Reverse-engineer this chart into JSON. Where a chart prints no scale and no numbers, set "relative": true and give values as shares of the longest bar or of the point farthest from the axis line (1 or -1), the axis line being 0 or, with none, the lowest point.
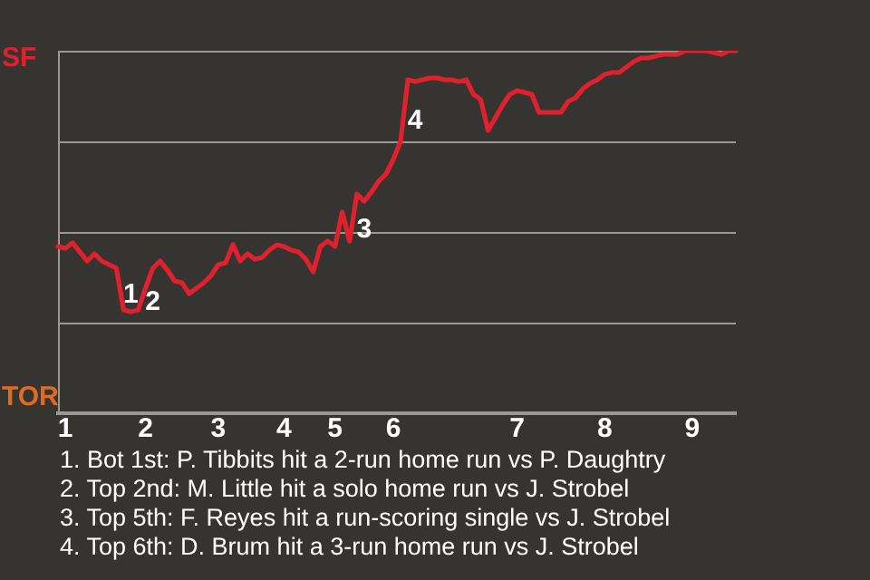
{
  "chart_data": {
    "type": "line",
    "relative": true,
    "marker": "none",
    "line_style": "solid",
    "ref_lines": [
      {
        "axis": "y",
        "value": 0.5,
        "color": "#9a9895"
      },
      {
        "axis": "y",
        "value": 0,
        "color": "#9a9895"
      },
      {
        "axis": "y",
        "value": -0.5,
        "color": "#9a9895"
      }
    ],
    "categories": [
      null,
      "1",
      null,
      null,
      null,
      null,
      null,
      null,
      null,
      null,
      null,
      null,
      "2",
      null,
      null,
      null,
      null,
      null,
      null,
      null,
      null,
      null,
      "3",
      null,
      null,
      null,
      null,
      null,
      null,
      null,
      null,
      "4",
      null,
      null,
      null,
      null,
      null,
      null,
      "5",
      null,
      null,
      null,
      null,
      null,
      null,
      null,
      "6",
      null,
      null,
      null,
      null,
      null,
      null,
      null,
      null,
      null,
      null,
      null,
      null,
      null,
      null,
      null,
      null,
      "7",
      null,
      null,
      null,
      null,
      null,
      null,
      null,
      null,
      null,
      null,
      null,
      "8",
      null,
      null,
      null,
      null,
      null,
      null,
      null,
      null,
      null,
      null,
      null,
      "9",
      null,
      null,
      null,
      null,
      null,
      null
    ],
    "color": "#e0202c",
    "values": [
      -0.08,
      -0.09,
      -0.06,
      -0.11,
      -0.16,
      -0.12,
      -0.16,
      -0.18,
      -0.2,
      -0.43,
      -0.44,
      -0.43,
      -0.31,
      -0.2,
      -0.16,
      -0.21,
      -0.27,
      -0.28,
      -0.34,
      -0.31,
      -0.28,
      -0.24,
      -0.18,
      -0.17,
      -0.07,
      -0.16,
      -0.12,
      -0.15,
      -0.14,
      -0.1,
      -0.07,
      -0.08,
      -0.1,
      -0.11,
      -0.15,
      -0.22,
      -0.08,
      -0.05,
      -0.08,
      0.11,
      -0.05,
      0.21,
      0.17,
      0.22,
      0.28,
      0.32,
      0.4,
      0.5,
      0.84,
      0.83,
      0.84,
      0.85,
      0.85,
      0.84,
      0.84,
      0.83,
      0.84,
      0.76,
      0.73,
      0.56,
      0.63,
      0.7,
      0.76,
      0.78,
      0.77,
      0.76,
      0.66,
      0.66,
      0.66,
      0.66,
      0.72,
      0.74,
      0.79,
      0.82,
      0.84,
      0.87,
      0.88,
      0.88,
      0.91,
      0.94,
      0.96,
      0.96,
      0.97,
      0.98,
      0.98,
      0.98,
      1.0,
      1.0,
      1.0,
      1.0,
      0.99,
      0.98,
      1.0,
      1.0
    ],
    "annotations": [
      "SF",
      "TOR",
      "1",
      "2",
      "3",
      "4",
      "1. Bot 1st: P. Tibbits hit a 2-run home run vs P. Daughtry",
      "2. Top 2nd: M. Little hit a solo home run vs J. Strobel",
      "3. Top 5th: F. Reyes hit a run-scoring single vs J. Strobel",
      "4. Top 6th: D. Brum hit a 3-run home run vs J. Strobel"
    ]
  }
}
